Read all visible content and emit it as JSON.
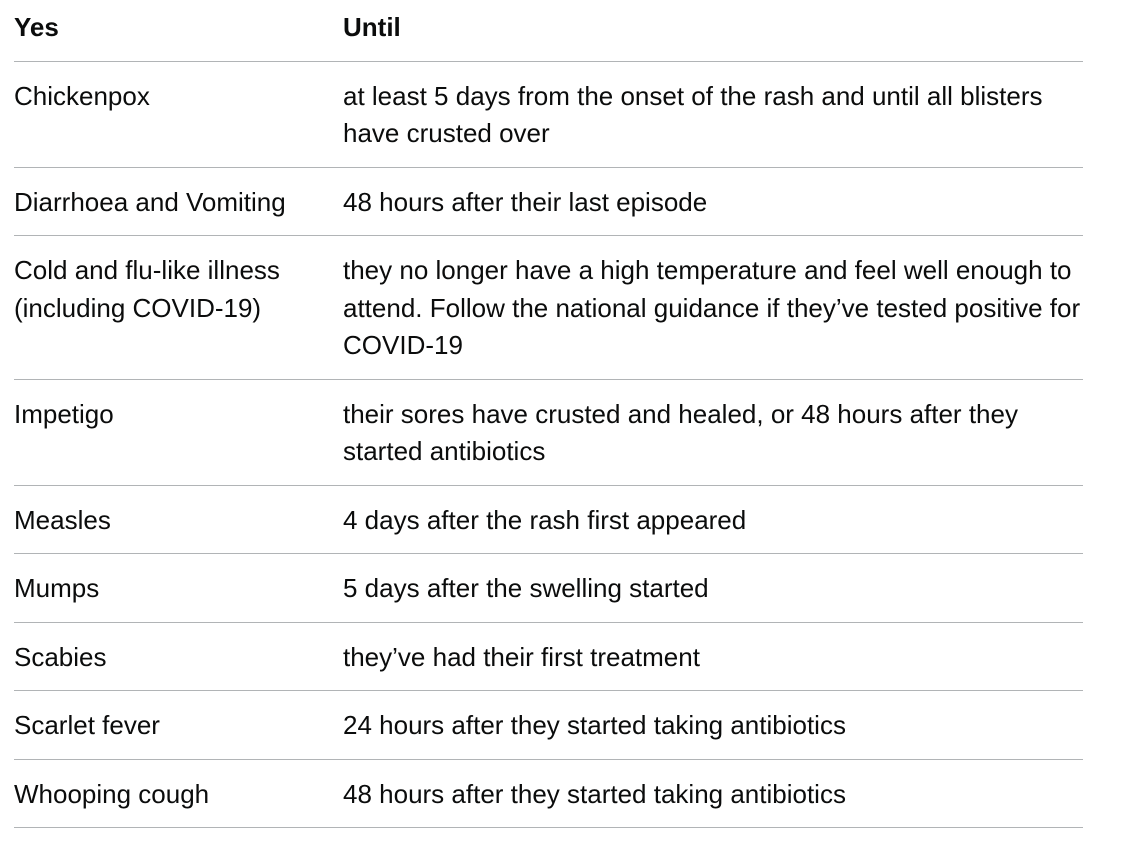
{
  "table": {
    "headers": [
      "Yes",
      "Until"
    ],
    "rows": [
      [
        "Chickenpox",
        "at least 5 days from the onset of the rash and until all blisters have crusted over"
      ],
      [
        "Diarrhoea and Vomiting",
        "48 hours after their last episode"
      ],
      [
        "Cold and flu-like illness (including COVID-19)",
        "they no longer have a high temperature and feel well enough to attend. Follow the national guidance if they’ve tested positive for COVID-19"
      ],
      [
        "Impetigo",
        "their sores have crusted and healed, or 48 hours after they started antibiotics"
      ],
      [
        "Measles",
        "4 days after the rash first appeared"
      ],
      [
        "Mumps",
        "5 days after the swelling started"
      ],
      [
        "Scabies",
        "they’ve had their first treatment"
      ],
      [
        "Scarlet fever",
        "24 hours after they started taking antibiotics"
      ],
      [
        "Whooping cough",
        "48 hours after they started taking antibiotics"
      ]
    ]
  }
}
